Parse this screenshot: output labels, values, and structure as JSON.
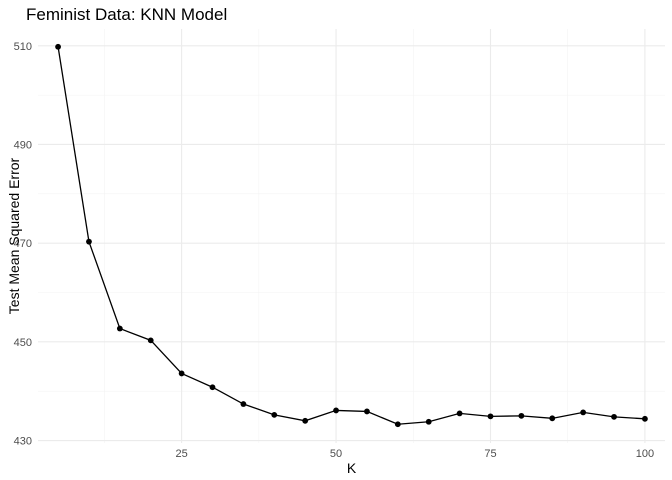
{
  "chart_data": {
    "type": "line",
    "title": "Feminist Data: KNN Model",
    "xlabel": "K",
    "ylabel": "Test Mean Squared Error",
    "x": [
      5,
      10,
      15,
      20,
      25,
      30,
      35,
      40,
      45,
      50,
      55,
      60,
      65,
      70,
      75,
      80,
      85,
      90,
      95,
      100
    ],
    "y": [
      509.8,
      470.3,
      452.7,
      450.3,
      443.6,
      440.8,
      437.4,
      435.2,
      434.0,
      436.1,
      435.9,
      433.3,
      433.8,
      435.5,
      434.9,
      435.0,
      434.5,
      435.7,
      434.8,
      434.4
    ],
    "xlim": [
      1.75,
      103.25
    ],
    "ylim": [
      429.5,
      513.4
    ],
    "x_ticks": [
      25,
      50,
      75,
      100
    ],
    "y_ticks": [
      430,
      450,
      470,
      490,
      510
    ],
    "grid": true,
    "legend": "none",
    "colors": {
      "line": "#000000",
      "points": "#000000",
      "grid": "#ebebeb"
    }
  }
}
